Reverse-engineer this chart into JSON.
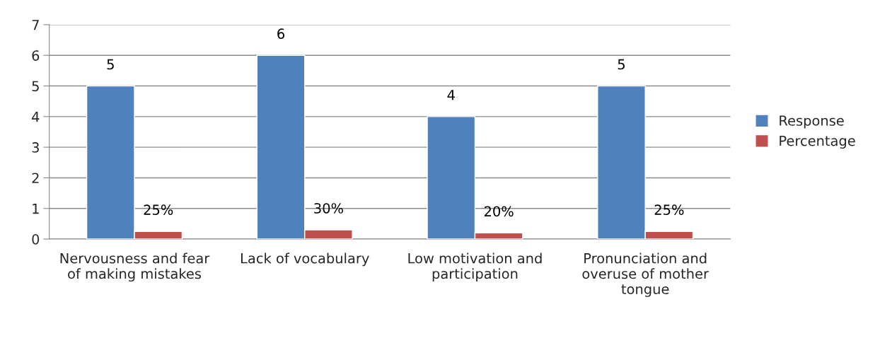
{
  "chart_data": {
    "type": "bar",
    "categories": [
      "Nervousness and fear\nof making mistakes",
      "Lack of vocabulary",
      "Low motivation and\nparticipation",
      "Pronunciation and\noveruse of mother\ntongue"
    ],
    "series": [
      {
        "name": "Response",
        "color": "#4f81bd",
        "values": [
          5,
          6,
          4,
          5
        ],
        "value_labels": [
          "5",
          "6",
          "4",
          "5"
        ]
      },
      {
        "name": "Percentage",
        "color": "#c0504d",
        "values": [
          0.25,
          0.3,
          0.2,
          0.25
        ],
        "value_labels": [
          "25%",
          "30%",
          "20%",
          "25%"
        ]
      }
    ],
    "ylim": [
      0,
      7
    ],
    "yticks": [
      0,
      1,
      2,
      3,
      4,
      5,
      6,
      7
    ],
    "grid": "y",
    "legend": "right"
  }
}
